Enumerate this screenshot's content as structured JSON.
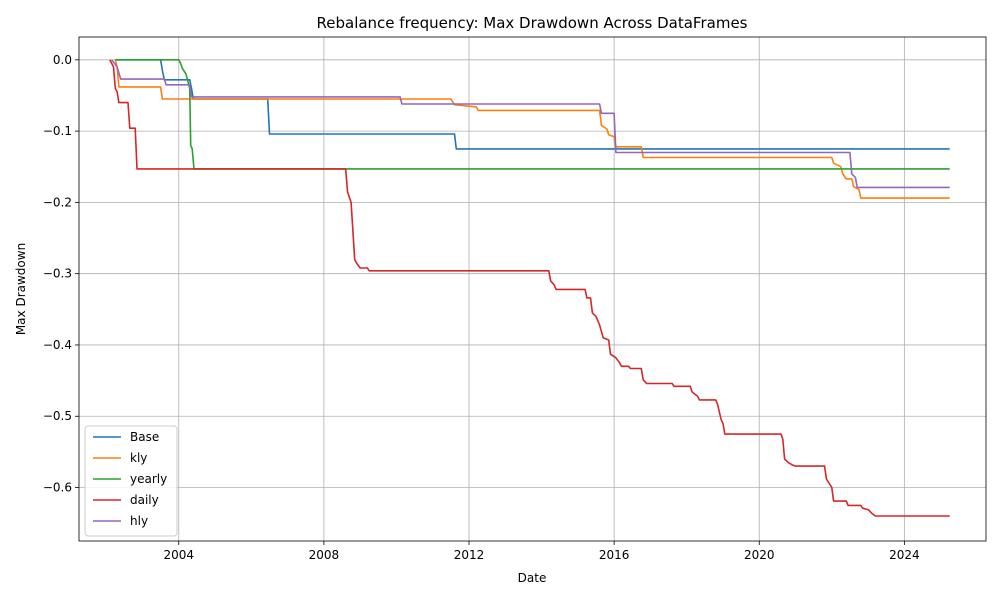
{
  "chart_data": {
    "type": "line",
    "title": "Rebalance frequency: Max Drawdown Across DataFrames",
    "xlabel": "Date",
    "ylabel": "Max Drawdown",
    "xlim": [
      2001.25,
      2026.25
    ],
    "ylim": [
      -0.675,
      0.032
    ],
    "x_ticks": [
      2004,
      2008,
      2012,
      2016,
      2020,
      2024
    ],
    "x_tick_labels": [
      "2004",
      "2008",
      "2012",
      "2016",
      "2020",
      "2024"
    ],
    "y_ticks": [
      0.0,
      -0.1,
      -0.2,
      -0.3,
      -0.4,
      -0.5,
      -0.6
    ],
    "y_tick_labels": [
      "0.0",
      "−0.1",
      "−0.2",
      "−0.3",
      "−0.4",
      "−0.5",
      "−0.6"
    ],
    "grid": true,
    "legend_position": "bottom-left",
    "series": [
      {
        "name": "Base",
        "color": "#1f77b4",
        "points": [
          [
            2002.25,
            0.0
          ],
          [
            2003.5,
            0.0
          ],
          [
            2003.55,
            -0.015
          ],
          [
            2003.6,
            -0.028
          ],
          [
            2004.3,
            -0.028
          ],
          [
            2004.35,
            -0.04
          ],
          [
            2004.4,
            -0.055
          ],
          [
            2006.45,
            -0.055
          ],
          [
            2006.5,
            -0.104
          ],
          [
            2011.6,
            -0.104
          ],
          [
            2011.65,
            -0.125
          ],
          [
            2025.25,
            -0.125
          ]
        ]
      },
      {
        "name": "kly",
        "color": "#ff7f0e",
        "points": [
          [
            2002.25,
            0.0
          ],
          [
            2002.3,
            -0.01
          ],
          [
            2002.35,
            -0.038
          ],
          [
            2003.5,
            -0.038
          ],
          [
            2003.55,
            -0.055
          ],
          [
            2011.5,
            -0.055
          ],
          [
            2011.6,
            -0.063
          ],
          [
            2012.2,
            -0.066
          ],
          [
            2012.25,
            -0.071
          ],
          [
            2015.6,
            -0.071
          ],
          [
            2015.65,
            -0.092
          ],
          [
            2015.8,
            -0.097
          ],
          [
            2015.85,
            -0.105
          ],
          [
            2016.0,
            -0.108
          ],
          [
            2016.05,
            -0.122
          ],
          [
            2016.75,
            -0.122
          ],
          [
            2016.8,
            -0.137
          ],
          [
            2022.0,
            -0.137
          ],
          [
            2022.05,
            -0.145
          ],
          [
            2022.25,
            -0.15
          ],
          [
            2022.3,
            -0.16
          ],
          [
            2022.4,
            -0.167
          ],
          [
            2022.55,
            -0.167
          ],
          [
            2022.6,
            -0.178
          ],
          [
            2022.75,
            -0.182
          ],
          [
            2022.8,
            -0.194
          ],
          [
            2025.25,
            -0.194
          ]
        ]
      },
      {
        "name": "yearly",
        "color": "#2ca02c",
        "points": [
          [
            2002.25,
            0.0
          ],
          [
            2004.0,
            0.0
          ],
          [
            2004.05,
            -0.005
          ],
          [
            2004.1,
            -0.012
          ],
          [
            2004.2,
            -0.02
          ],
          [
            2004.3,
            -0.04
          ],
          [
            2004.33,
            -0.12
          ],
          [
            2004.37,
            -0.125
          ],
          [
            2004.42,
            -0.153
          ],
          [
            2025.25,
            -0.153
          ]
        ]
      },
      {
        "name": "daily",
        "color": "#d62728",
        "points": [
          [
            2002.1,
            0.0
          ],
          [
            2002.2,
            -0.01
          ],
          [
            2002.25,
            -0.04
          ],
          [
            2002.3,
            -0.045
          ],
          [
            2002.35,
            -0.06
          ],
          [
            2002.6,
            -0.06
          ],
          [
            2002.65,
            -0.096
          ],
          [
            2002.8,
            -0.096
          ],
          [
            2002.85,
            -0.153
          ],
          [
            2008.6,
            -0.153
          ],
          [
            2008.65,
            -0.185
          ],
          [
            2008.75,
            -0.2
          ],
          [
            2008.8,
            -0.24
          ],
          [
            2008.85,
            -0.28
          ],
          [
            2008.9,
            -0.285
          ],
          [
            2009.0,
            -0.292
          ],
          [
            2009.2,
            -0.292
          ],
          [
            2009.25,
            -0.296
          ],
          [
            2014.2,
            -0.296
          ],
          [
            2014.25,
            -0.31
          ],
          [
            2014.35,
            -0.316
          ],
          [
            2014.4,
            -0.322
          ],
          [
            2015.2,
            -0.322
          ],
          [
            2015.25,
            -0.334
          ],
          [
            2015.35,
            -0.334
          ],
          [
            2015.4,
            -0.355
          ],
          [
            2015.5,
            -0.36
          ],
          [
            2015.6,
            -0.372
          ],
          [
            2015.7,
            -0.39
          ],
          [
            2015.85,
            -0.393
          ],
          [
            2015.9,
            -0.413
          ],
          [
            2016.05,
            -0.418
          ],
          [
            2016.15,
            -0.425
          ],
          [
            2016.2,
            -0.43
          ],
          [
            2016.4,
            -0.43
          ],
          [
            2016.45,
            -0.433
          ],
          [
            2016.75,
            -0.433
          ],
          [
            2016.8,
            -0.449
          ],
          [
            2016.9,
            -0.454
          ],
          [
            2017.6,
            -0.454
          ],
          [
            2017.65,
            -0.458
          ],
          [
            2018.1,
            -0.458
          ],
          [
            2018.15,
            -0.466
          ],
          [
            2018.3,
            -0.472
          ],
          [
            2018.35,
            -0.477
          ],
          [
            2018.8,
            -0.477
          ],
          [
            2018.85,
            -0.483
          ],
          [
            2018.95,
            -0.505
          ],
          [
            2019.0,
            -0.51
          ],
          [
            2019.05,
            -0.525
          ],
          [
            2020.6,
            -0.525
          ],
          [
            2020.65,
            -0.532
          ],
          [
            2020.7,
            -0.56
          ],
          [
            2020.8,
            -0.565
          ],
          [
            2020.9,
            -0.568
          ],
          [
            2021.0,
            -0.57
          ],
          [
            2021.8,
            -0.57
          ],
          [
            2021.85,
            -0.588
          ],
          [
            2022.0,
            -0.6
          ],
          [
            2022.05,
            -0.619
          ],
          [
            2022.4,
            -0.619
          ],
          [
            2022.45,
            -0.625
          ],
          [
            2022.8,
            -0.625
          ],
          [
            2022.85,
            -0.629
          ],
          [
            2023.0,
            -0.631
          ],
          [
            2023.1,
            -0.636
          ],
          [
            2023.2,
            -0.64
          ],
          [
            2025.25,
            -0.64
          ]
        ]
      },
      {
        "name": "hly",
        "color": "#9467bd",
        "points": [
          [
            2002.15,
            0.0
          ],
          [
            2002.3,
            -0.01
          ],
          [
            2002.4,
            -0.027
          ],
          [
            2003.6,
            -0.027
          ],
          [
            2003.65,
            -0.035
          ],
          [
            2004.3,
            -0.035
          ],
          [
            2004.35,
            -0.052
          ],
          [
            2010.1,
            -0.052
          ],
          [
            2010.15,
            -0.062
          ],
          [
            2015.6,
            -0.062
          ],
          [
            2015.65,
            -0.075
          ],
          [
            2016.0,
            -0.075
          ],
          [
            2016.05,
            -0.13
          ],
          [
            2022.5,
            -0.13
          ],
          [
            2022.55,
            -0.16
          ],
          [
            2022.65,
            -0.165
          ],
          [
            2022.7,
            -0.179
          ],
          [
            2025.25,
            -0.179
          ]
        ]
      }
    ]
  }
}
